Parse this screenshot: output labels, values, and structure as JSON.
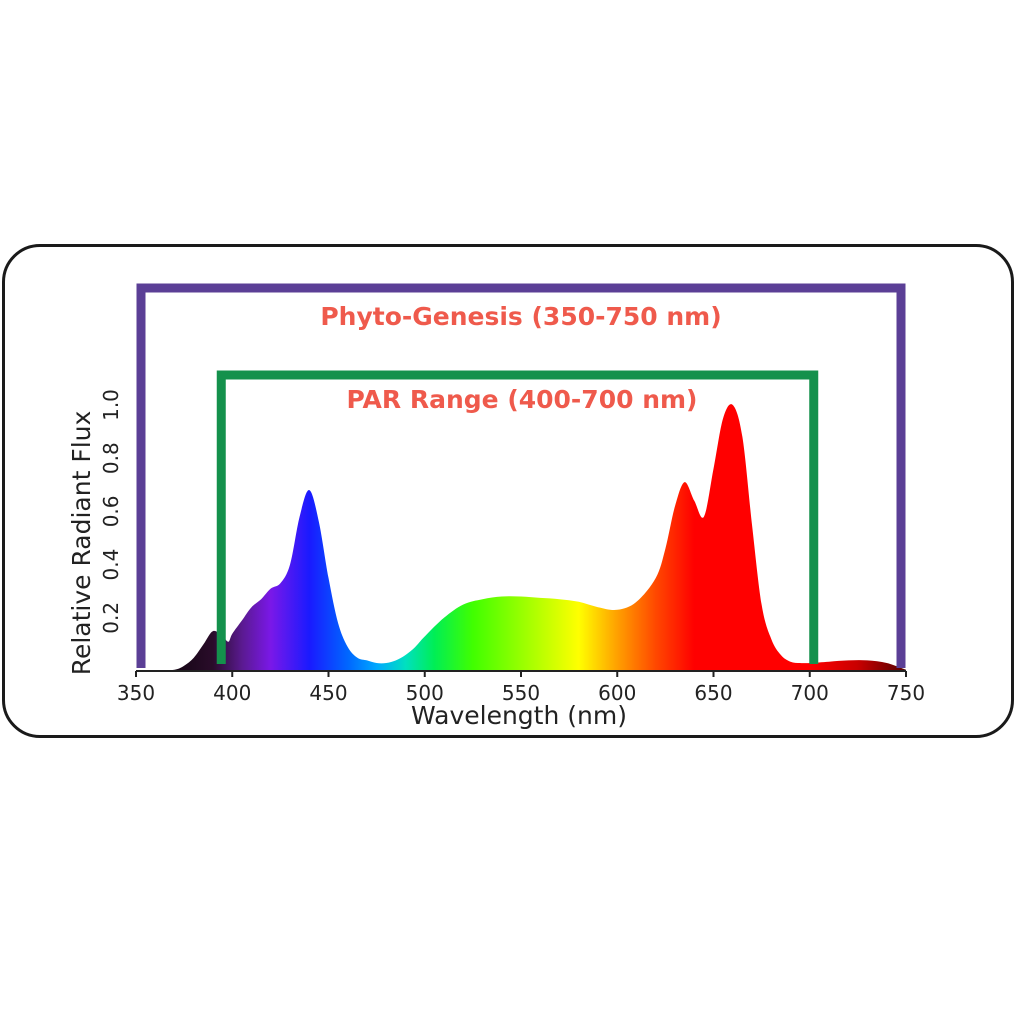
{
  "chart_data": {
    "type": "area",
    "title": "",
    "xlabel": "Wavelength (nm)",
    "ylabel": "Relative Radiant Flux",
    "xlim": [
      350,
      750
    ],
    "ylim": [
      0,
      1.0
    ],
    "x_ticks": [
      "350",
      "400",
      "450",
      "500",
      "550",
      "600",
      "650",
      "700",
      "750"
    ],
    "y_ticks": [
      "0.2",
      "0.4",
      "0.6",
      "0.8",
      "1.0"
    ],
    "grid": false,
    "fill": "visible-spectrum gradient",
    "series": [
      {
        "x": [
          350,
          360,
          370,
          375,
          380,
          385,
          390,
          395,
          398,
          400,
          405,
          410,
          415,
          420,
          425,
          430,
          435,
          440,
          445,
          450,
          455,
          460,
          465,
          470,
          475,
          480,
          485,
          490,
          495,
          500,
          510,
          520,
          530,
          540,
          550,
          560,
          570,
          580,
          590,
          600,
          610,
          620,
          625,
          630,
          635,
          640,
          645,
          650,
          655,
          660,
          665,
          670,
          675,
          680,
          685,
          690,
          695,
          700,
          710,
          720,
          730,
          740,
          750
        ],
        "y": [
          0,
          0,
          0.005,
          0.02,
          0.05,
          0.1,
          0.15,
          0.13,
          0.11,
          0.14,
          0.19,
          0.24,
          0.27,
          0.31,
          0.33,
          0.4,
          0.58,
          0.68,
          0.56,
          0.35,
          0.18,
          0.09,
          0.05,
          0.04,
          0.03,
          0.03,
          0.04,
          0.06,
          0.09,
          0.13,
          0.2,
          0.25,
          0.27,
          0.28,
          0.28,
          0.275,
          0.27,
          0.26,
          0.24,
          0.23,
          0.26,
          0.35,
          0.46,
          0.62,
          0.71,
          0.64,
          0.58,
          0.76,
          0.95,
          1.0,
          0.88,
          0.55,
          0.25,
          0.12,
          0.06,
          0.035,
          0.03,
          0.03,
          0.035,
          0.04,
          0.04,
          0.03,
          0.005
        ]
      }
    ],
    "ranges": [
      {
        "label": "Phyto-Genesis (350-750 nm)",
        "start": 350,
        "end": 750,
        "color": "#5b3f96"
      },
      {
        "label": "PAR Range (400-700 nm)",
        "start": 400,
        "end": 700,
        "color": "#14914c"
      }
    ],
    "label_color": "#ef5a4c"
  }
}
